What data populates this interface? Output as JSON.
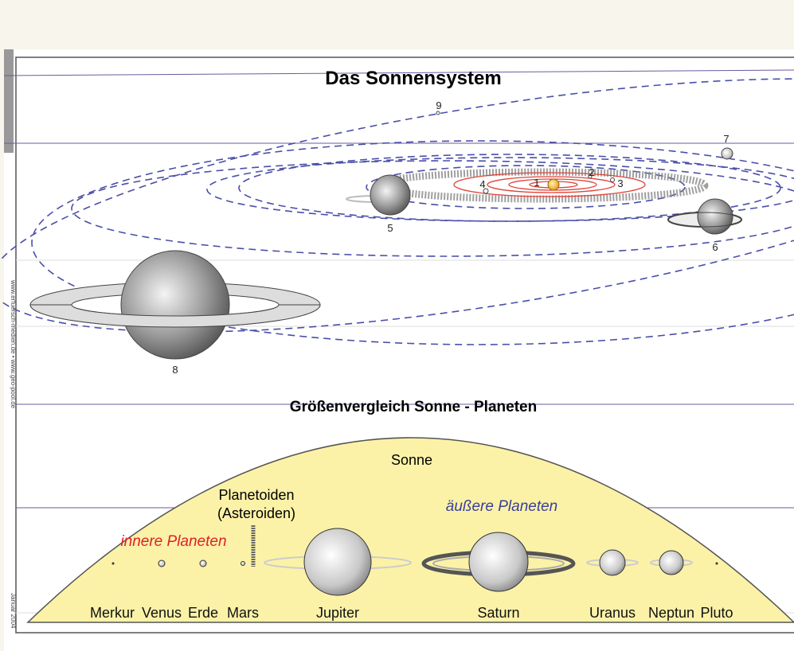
{
  "title": "Das Sonnensystem",
  "orbit_labels": [
    "1",
    "2",
    "3",
    "4",
    "5",
    "6",
    "7",
    "8",
    "9"
  ],
  "comparison": {
    "title": "Größenvergleich Sonne - Planeten",
    "sun": "Sonne",
    "asteroids": [
      "Planetoiden",
      "(Asteroiden)"
    ],
    "inner": "innere Planeten",
    "outer": "äußere Planeten",
    "planets": [
      "Merkur",
      "Venus",
      "Erde",
      "Mars",
      "Jupiter",
      "Saturn",
      "Uranus",
      "Neptun",
      "Pluto"
    ]
  },
  "side_text": [
    "www.erfuersch-medien.de  •  www.geo-pool.de",
    "Januar 2004"
  ]
}
